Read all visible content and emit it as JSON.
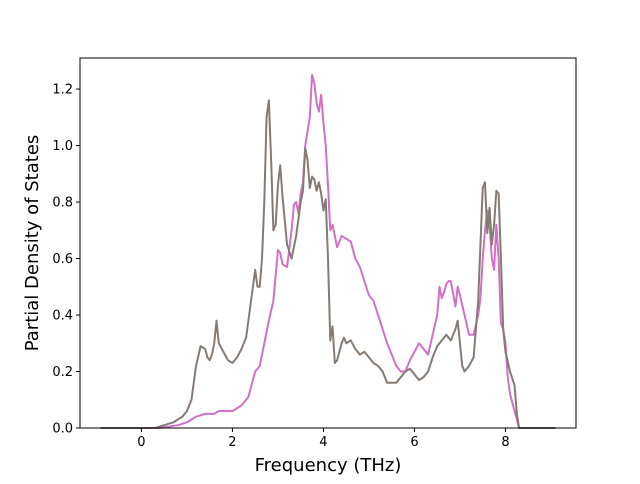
{
  "chart_data": {
    "type": "line",
    "xlabel": "Frequency (THz)",
    "ylabel": "Partial Density of States",
    "xlim": [
      -1.35,
      9.55
    ],
    "ylim": [
      0.0,
      1.31
    ],
    "x_ticks": [
      0,
      2,
      4,
      6,
      8
    ],
    "x_tick_labels": [
      "0",
      "2",
      "4",
      "6",
      "8"
    ],
    "y_ticks": [
      0.0,
      0.2,
      0.4,
      0.6,
      0.8,
      1.0,
      1.2
    ],
    "y_tick_labels": [
      "0.0",
      "0.2",
      "0.4",
      "0.6",
      "0.8",
      "1.0",
      "1.2"
    ],
    "grid": false,
    "legend": "none",
    "series": [
      {
        "color": "#d36fc6",
        "points": [
          [
            -0.9,
            0.0
          ],
          [
            0.4,
            0.0
          ],
          [
            0.8,
            0.01
          ],
          [
            1.0,
            0.02
          ],
          [
            1.2,
            0.04
          ],
          [
            1.4,
            0.05
          ],
          [
            1.6,
            0.05
          ],
          [
            1.7,
            0.06
          ],
          [
            1.8,
            0.06
          ],
          [
            2.0,
            0.06
          ],
          [
            2.2,
            0.08
          ],
          [
            2.35,
            0.11
          ],
          [
            2.5,
            0.2
          ],
          [
            2.6,
            0.22
          ],
          [
            2.7,
            0.3
          ],
          [
            2.8,
            0.38
          ],
          [
            2.9,
            0.45
          ],
          [
            3.0,
            0.63
          ],
          [
            3.05,
            0.62
          ],
          [
            3.1,
            0.58
          ],
          [
            3.2,
            0.57
          ],
          [
            3.3,
            0.7
          ],
          [
            3.35,
            0.79
          ],
          [
            3.4,
            0.8
          ],
          [
            3.45,
            0.76
          ],
          [
            3.5,
            0.83
          ],
          [
            3.55,
            0.87
          ],
          [
            3.6,
            1.0
          ],
          [
            3.65,
            1.05
          ],
          [
            3.7,
            1.1
          ],
          [
            3.75,
            1.25
          ],
          [
            3.8,
            1.22
          ],
          [
            3.85,
            1.15
          ],
          [
            3.9,
            1.12
          ],
          [
            3.95,
            1.18
          ],
          [
            4.0,
            1.08
          ],
          [
            4.05,
            1.0
          ],
          [
            4.1,
            0.86
          ],
          [
            4.15,
            0.7
          ],
          [
            4.2,
            0.72
          ],
          [
            4.3,
            0.64
          ],
          [
            4.4,
            0.68
          ],
          [
            4.5,
            0.67
          ],
          [
            4.6,
            0.66
          ],
          [
            4.7,
            0.6
          ],
          [
            4.8,
            0.57
          ],
          [
            4.9,
            0.52
          ],
          [
            5.0,
            0.47
          ],
          [
            5.1,
            0.45
          ],
          [
            5.2,
            0.4
          ],
          [
            5.3,
            0.35
          ],
          [
            5.4,
            0.3
          ],
          [
            5.5,
            0.26
          ],
          [
            5.6,
            0.22
          ],
          [
            5.7,
            0.2
          ],
          [
            5.8,
            0.2
          ],
          [
            5.9,
            0.24
          ],
          [
            6.0,
            0.27
          ],
          [
            6.1,
            0.3
          ],
          [
            6.2,
            0.28
          ],
          [
            6.3,
            0.26
          ],
          [
            6.4,
            0.33
          ],
          [
            6.5,
            0.4
          ],
          [
            6.55,
            0.5
          ],
          [
            6.6,
            0.46
          ],
          [
            6.65,
            0.48
          ],
          [
            6.7,
            0.51
          ],
          [
            6.75,
            0.52
          ],
          [
            6.8,
            0.52
          ],
          [
            6.9,
            0.43
          ],
          [
            6.95,
            0.5
          ],
          [
            7.0,
            0.47
          ],
          [
            7.1,
            0.4
          ],
          [
            7.2,
            0.33
          ],
          [
            7.3,
            0.33
          ],
          [
            7.4,
            0.4
          ],
          [
            7.45,
            0.46
          ],
          [
            7.5,
            0.6
          ],
          [
            7.55,
            0.7
          ],
          [
            7.6,
            0.77
          ],
          [
            7.65,
            0.72
          ],
          [
            7.7,
            0.6
          ],
          [
            7.75,
            0.56
          ],
          [
            7.8,
            0.72
          ],
          [
            7.85,
            0.6
          ],
          [
            7.9,
            0.37
          ],
          [
            7.95,
            0.35
          ],
          [
            8.0,
            0.3
          ],
          [
            8.05,
            0.18
          ],
          [
            8.1,
            0.12
          ],
          [
            8.2,
            0.06
          ],
          [
            8.25,
            0.03
          ],
          [
            8.3,
            0.0
          ],
          [
            9.1,
            0.0
          ]
        ]
      },
      {
        "color": "#857b73",
        "points": [
          [
            -0.9,
            0.0
          ],
          [
            0.3,
            0.0
          ],
          [
            0.5,
            0.01
          ],
          [
            0.7,
            0.02
          ],
          [
            0.9,
            0.04
          ],
          [
            1.0,
            0.06
          ],
          [
            1.1,
            0.1
          ],
          [
            1.2,
            0.22
          ],
          [
            1.3,
            0.29
          ],
          [
            1.4,
            0.28
          ],
          [
            1.45,
            0.25
          ],
          [
            1.5,
            0.24
          ],
          [
            1.55,
            0.26
          ],
          [
            1.6,
            0.3
          ],
          [
            1.65,
            0.38
          ],
          [
            1.7,
            0.3
          ],
          [
            1.8,
            0.27
          ],
          [
            1.9,
            0.24
          ],
          [
            2.0,
            0.23
          ],
          [
            2.1,
            0.25
          ],
          [
            2.2,
            0.28
          ],
          [
            2.3,
            0.32
          ],
          [
            2.4,
            0.44
          ],
          [
            2.45,
            0.5
          ],
          [
            2.5,
            0.56
          ],
          [
            2.55,
            0.5
          ],
          [
            2.6,
            0.5
          ],
          [
            2.65,
            0.6
          ],
          [
            2.7,
            0.8
          ],
          [
            2.75,
            1.1
          ],
          [
            2.8,
            1.16
          ],
          [
            2.85,
            0.95
          ],
          [
            2.9,
            0.7
          ],
          [
            2.95,
            0.72
          ],
          [
            3.0,
            0.86
          ],
          [
            3.05,
            0.93
          ],
          [
            3.1,
            0.82
          ],
          [
            3.2,
            0.65
          ],
          [
            3.3,
            0.6
          ],
          [
            3.4,
            0.68
          ],
          [
            3.5,
            0.8
          ],
          [
            3.55,
            0.84
          ],
          [
            3.6,
            0.99
          ],
          [
            3.65,
            0.95
          ],
          [
            3.7,
            0.85
          ],
          [
            3.75,
            0.89
          ],
          [
            3.8,
            0.88
          ],
          [
            3.85,
            0.84
          ],
          [
            3.9,
            0.87
          ],
          [
            3.95,
            0.83
          ],
          [
            4.0,
            0.77
          ],
          [
            4.05,
            0.81
          ],
          [
            4.1,
            0.6
          ],
          [
            4.15,
            0.31
          ],
          [
            4.2,
            0.36
          ],
          [
            4.25,
            0.23
          ],
          [
            4.3,
            0.24
          ],
          [
            4.4,
            0.3
          ],
          [
            4.45,
            0.32
          ],
          [
            4.5,
            0.3
          ],
          [
            4.6,
            0.31
          ],
          [
            4.7,
            0.28
          ],
          [
            4.8,
            0.26
          ],
          [
            4.9,
            0.27
          ],
          [
            5.0,
            0.25
          ],
          [
            5.1,
            0.23
          ],
          [
            5.2,
            0.22
          ],
          [
            5.3,
            0.2
          ],
          [
            5.4,
            0.16
          ],
          [
            5.5,
            0.16
          ],
          [
            5.6,
            0.16
          ],
          [
            5.7,
            0.18
          ],
          [
            5.8,
            0.2
          ],
          [
            5.9,
            0.21
          ],
          [
            6.0,
            0.19
          ],
          [
            6.1,
            0.17
          ],
          [
            6.2,
            0.18
          ],
          [
            6.3,
            0.2
          ],
          [
            6.4,
            0.25
          ],
          [
            6.5,
            0.29
          ],
          [
            6.6,
            0.31
          ],
          [
            6.7,
            0.33
          ],
          [
            6.8,
            0.31
          ],
          [
            6.9,
            0.35
          ],
          [
            6.95,
            0.38
          ],
          [
            7.0,
            0.3
          ],
          [
            7.05,
            0.22
          ],
          [
            7.1,
            0.2
          ],
          [
            7.2,
            0.22
          ],
          [
            7.3,
            0.25
          ],
          [
            7.4,
            0.45
          ],
          [
            7.5,
            0.85
          ],
          [
            7.55,
            0.87
          ],
          [
            7.6,
            0.69
          ],
          [
            7.65,
            0.78
          ],
          [
            7.7,
            0.65
          ],
          [
            7.75,
            0.72
          ],
          [
            7.8,
            0.84
          ],
          [
            7.85,
            0.83
          ],
          [
            7.9,
            0.6
          ],
          [
            7.95,
            0.35
          ],
          [
            8.0,
            0.27
          ],
          [
            8.1,
            0.2
          ],
          [
            8.2,
            0.15
          ],
          [
            8.25,
            0.05
          ],
          [
            8.3,
            0.0
          ],
          [
            9.1,
            0.0
          ]
        ]
      }
    ]
  }
}
